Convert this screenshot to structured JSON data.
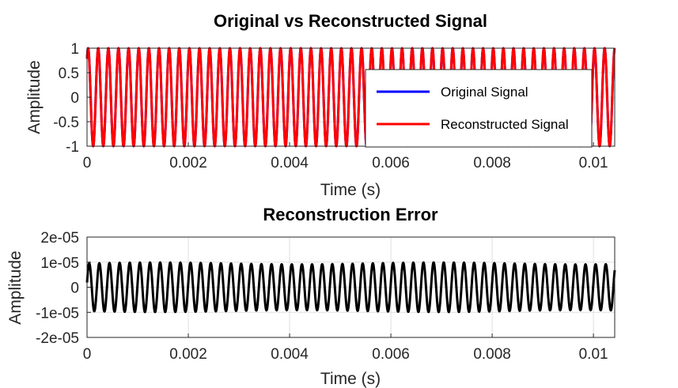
{
  "chart_data": [
    {
      "type": "line",
      "title": "Original vs Reconstructed Signal",
      "xlabel": "Time (s)",
      "ylabel": "Amplitude",
      "xlim": [
        0,
        0.01042
      ],
      "ylim": [
        -1,
        1
      ],
      "x_ticks": [
        "0",
        "0.002",
        "0.004",
        "0.006",
        "0.008",
        "0.01"
      ],
      "x_tick_values": [
        0,
        0.002,
        0.004,
        0.006,
        0.008,
        0.01
      ],
      "y_ticks": [
        "1",
        "0.5",
        "0",
        "-0.5",
        "-1"
      ],
      "y_tick_values": [
        1,
        0.5,
        0,
        -0.5,
        -1
      ],
      "grid": true,
      "legend_position": "right",
      "series": [
        {
          "name": "Original Signal",
          "color": "#0000ff",
          "frequency_hz": 5000,
          "amplitude": 1,
          "phase_rad": 0.9
        },
        {
          "name": "Reconstructed Signal",
          "color": "#ff0000",
          "frequency_hz": 5000,
          "amplitude": 1,
          "phase_rad": 0.9
        }
      ]
    },
    {
      "type": "line",
      "title": "Reconstruction Error",
      "xlabel": "Time (s)",
      "ylabel": "Amplitude",
      "xlim": [
        0,
        0.01042
      ],
      "ylim": [
        -2e-05,
        2e-05
      ],
      "x_ticks": [
        "0",
        "0.002",
        "0.004",
        "0.006",
        "0.008",
        "0.01"
      ],
      "x_tick_values": [
        0,
        0.002,
        0.004,
        0.006,
        0.008,
        0.01
      ],
      "y_ticks": [
        "2e-05",
        "1e-05",
        "0",
        "-1e-05",
        "-2e-05"
      ],
      "y_tick_values": [
        2e-05,
        1e-05,
        0,
        -1e-05,
        -2e-05
      ],
      "grid": true,
      "series": [
        {
          "name": "",
          "color": "#000000",
          "frequency_hz": 5000,
          "amplitude": 9.5e-06,
          "phase_rad": 0.2
        }
      ]
    }
  ]
}
